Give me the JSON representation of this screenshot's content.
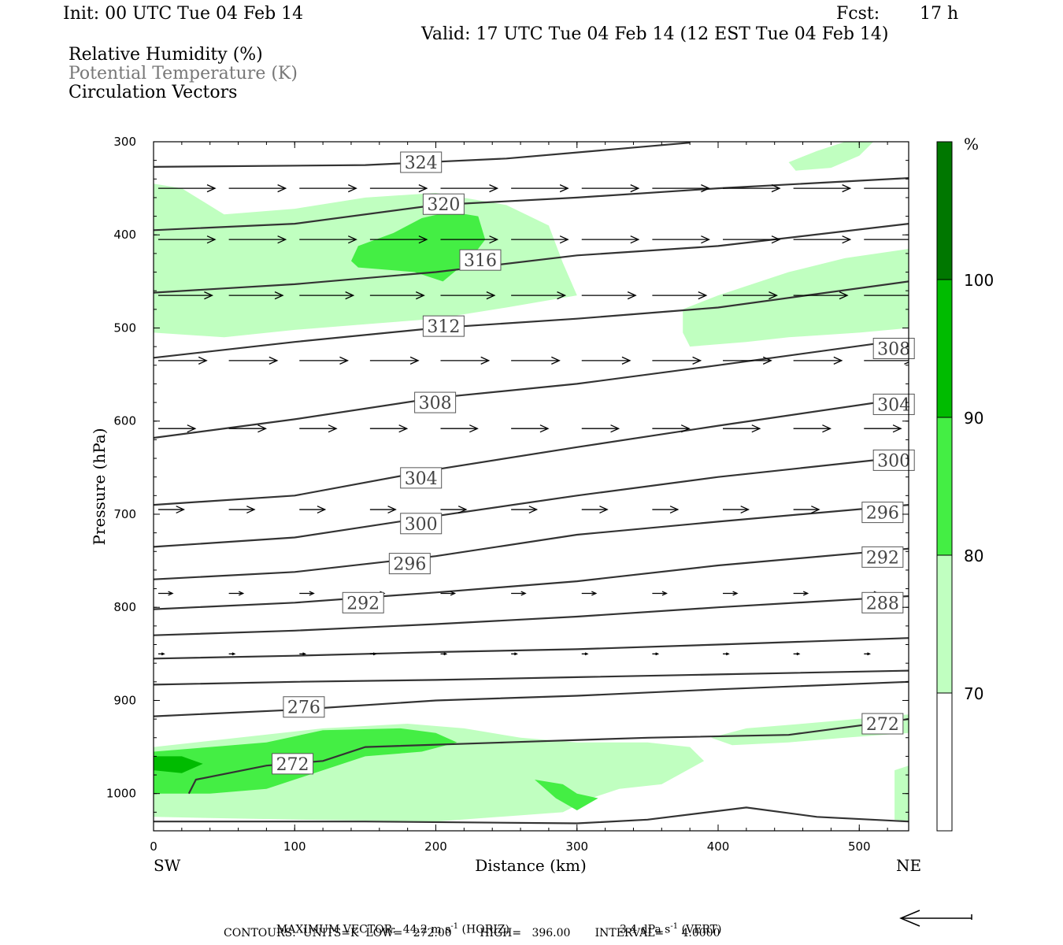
{
  "header": {
    "init": "Init: 00 UTC Tue 04 Feb 14",
    "fcst_label": "Fcst:",
    "fcst_value": "17 h",
    "valid": "Valid: 17 UTC Tue 04 Feb 14 (12 EST Tue 04 Feb 14)"
  },
  "fields": [
    {
      "label": "Relative Humidity (%)",
      "color": "#000000"
    },
    {
      "label": "Potential Temperature (K)",
      "color": "#777777"
    },
    {
      "label": "Circulation Vectors",
      "color": "#000000"
    }
  ],
  "colorbar": {
    "unit": "%",
    "levels": [
      "70",
      "80",
      "90",
      "100"
    ],
    "colors": [
      "#ffffff",
      "#c0ffc0",
      "#44ee44",
      "#00bb00",
      "#007700"
    ]
  },
  "footer": {
    "max_vector_label": "MAXIMUM VECTOR:",
    "horiz_value": "44.2 m s",
    "horiz_exp": "-1",
    "horiz_tag": "(HORIZ)",
    "vert_value": "3.4 dPa s",
    "vert_exp": "-1",
    "vert_tag": "(VERT)",
    "contours": "CONTOURS:  UNITS=K  LOW=   272.00        HIGH=   396.00       INTERVAL=     4.0000"
  },
  "chart_data": {
    "type": "cross-section",
    "xlabel": "Distance (km)",
    "ylabel": "Pressure (hPa)",
    "x_left_label": "SW",
    "x_right_label": "NE",
    "xlim": [
      0,
      535
    ],
    "ylim": [
      1040,
      300
    ],
    "xticks": [
      0,
      100,
      200,
      300,
      400,
      500
    ],
    "yticks": [
      300,
      400,
      500,
      600,
      700,
      800,
      900,
      1000
    ],
    "theta_contours": [
      {
        "level": 324,
        "points": [
          [
            0,
            327
          ],
          [
            150,
            325
          ],
          [
            250,
            318
          ],
          [
            380,
            301
          ]
        ]
      },
      {
        "level": 320,
        "points": [
          [
            0,
            395
          ],
          [
            100,
            388
          ],
          [
            200,
            368
          ],
          [
            300,
            360
          ],
          [
            400,
            350
          ],
          [
            535,
            339
          ]
        ]
      },
      {
        "level": 316,
        "points": [
          [
            0,
            462
          ],
          [
            100,
            453
          ],
          [
            200,
            440
          ],
          [
            300,
            422
          ],
          [
            400,
            412
          ],
          [
            535,
            388
          ]
        ]
      },
      {
        "level": 312,
        "points": [
          [
            0,
            532
          ],
          [
            100,
            515
          ],
          [
            200,
            500
          ],
          [
            300,
            490
          ],
          [
            400,
            478
          ],
          [
            535,
            450
          ]
        ]
      },
      {
        "level": 308,
        "points": [
          [
            0,
            618
          ],
          [
            100,
            598
          ],
          [
            200,
            575
          ],
          [
            300,
            560
          ],
          [
            400,
            540
          ],
          [
            535,
            512
          ]
        ]
      },
      {
        "level": 304,
        "points": [
          [
            0,
            690
          ],
          [
            100,
            680
          ],
          [
            200,
            652
          ],
          [
            300,
            628
          ],
          [
            400,
            605
          ],
          [
            535,
            575
          ]
        ]
      },
      {
        "level": 300,
        "points": [
          [
            0,
            735
          ],
          [
            100,
            725
          ],
          [
            200,
            702
          ],
          [
            300,
            680
          ],
          [
            400,
            660
          ],
          [
            535,
            638
          ]
        ]
      },
      {
        "level": 296,
        "points": [
          [
            0,
            770
          ],
          [
            100,
            762
          ],
          [
            200,
            745
          ],
          [
            300,
            722
          ],
          [
            400,
            708
          ],
          [
            535,
            690
          ]
        ]
      },
      {
        "level": 292,
        "points": [
          [
            0,
            802
          ],
          [
            100,
            795
          ],
          [
            200,
            784
          ],
          [
            300,
            772
          ],
          [
            400,
            755
          ],
          [
            535,
            737
          ]
        ]
      },
      {
        "level": 288,
        "points": [
          [
            0,
            830
          ],
          [
            100,
            825
          ],
          [
            200,
            818
          ],
          [
            300,
            810
          ],
          [
            400,
            800
          ],
          [
            535,
            788
          ]
        ]
      },
      {
        "level": 284,
        "points": [
          [
            0,
            855
          ],
          [
            100,
            852
          ],
          [
            200,
            848
          ],
          [
            300,
            845
          ],
          [
            400,
            840
          ],
          [
            535,
            833
          ]
        ]
      },
      {
        "level": 280,
        "points": [
          [
            0,
            883
          ],
          [
            100,
            880
          ],
          [
            200,
            878
          ],
          [
            300,
            875
          ],
          [
            400,
            872
          ],
          [
            535,
            868
          ]
        ]
      },
      {
        "level": 276,
        "points": [
          [
            0,
            917
          ],
          [
            100,
            910
          ],
          [
            200,
            900
          ],
          [
            300,
            895
          ],
          [
            400,
            888
          ],
          [
            535,
            880
          ]
        ]
      },
      {
        "level": 272,
        "points": [
          [
            25,
            1000
          ],
          [
            30,
            985
          ],
          [
            80,
            970
          ],
          [
            120,
            965
          ],
          [
            150,
            950
          ],
          [
            250,
            945
          ],
          [
            350,
            940
          ],
          [
            450,
            937
          ],
          [
            535,
            920
          ]
        ]
      },
      {
        "level": 268,
        "points": [
          [
            0,
            1030
          ],
          [
            150,
            1030
          ],
          [
            300,
            1032
          ],
          [
            350,
            1028
          ],
          [
            420,
            1015
          ],
          [
            470,
            1025
          ],
          [
            535,
            1030
          ]
        ]
      }
    ],
    "theta_labels": [
      {
        "level": "324",
        "x": 175,
        "p": 322
      },
      {
        "level": "320",
        "x": 191,
        "p": 367
      },
      {
        "level": "316",
        "x": 217,
        "p": 427
      },
      {
        "level": "312",
        "x": 191,
        "p": 498
      },
      {
        "level": "308",
        "x": 510,
        "p": 522
      },
      {
        "level": "308",
        "x": 185,
        "p": 580
      },
      {
        "level": "304",
        "x": 510,
        "p": 582
      },
      {
        "level": "300",
        "x": 510,
        "p": 642
      },
      {
        "level": "304",
        "x": 175,
        "p": 661
      },
      {
        "level": "296",
        "x": 502,
        "p": 698
      },
      {
        "level": "300",
        "x": 175,
        "p": 710
      },
      {
        "level": "292",
        "x": 502,
        "p": 746
      },
      {
        "level": "296",
        "x": 167,
        "p": 753
      },
      {
        "level": "288",
        "x": 502,
        "p": 795
      },
      {
        "level": "292",
        "x": 134,
        "p": 795
      },
      {
        "level": "276",
        "x": 92,
        "p": 907
      },
      {
        "level": "272",
        "x": 502,
        "p": 925
      },
      {
        "level": "272",
        "x": 84,
        "p": 968
      }
    ],
    "rh_regions": [
      {
        "level": "70-80",
        "points": [
          [
            0,
            345
          ],
          [
            20,
            350
          ],
          [
            50,
            378
          ],
          [
            100,
            372
          ],
          [
            150,
            360
          ],
          [
            200,
            355
          ],
          [
            250,
            368
          ],
          [
            280,
            390
          ],
          [
            290,
            430
          ],
          [
            300,
            465
          ],
          [
            250,
            478
          ],
          [
            200,
            490
          ],
          [
            150,
            496
          ],
          [
            100,
            502
          ],
          [
            50,
            510
          ],
          [
            0,
            505
          ]
        ]
      },
      {
        "level": "80-90",
        "points": [
          [
            145,
            412
          ],
          [
            170,
            398
          ],
          [
            190,
            382
          ],
          [
            210,
            375
          ],
          [
            230,
            380
          ],
          [
            235,
            405
          ],
          [
            225,
            425
          ],
          [
            205,
            450
          ],
          [
            185,
            440
          ],
          [
            145,
            435
          ],
          [
            140,
            428
          ]
        ]
      },
      {
        "level": "70-80",
        "points": [
          [
            375,
            480
          ],
          [
            400,
            465
          ],
          [
            450,
            440
          ],
          [
            490,
            425
          ],
          [
            535,
            415
          ],
          [
            535,
            500
          ],
          [
            500,
            505
          ],
          [
            450,
            510
          ],
          [
            420,
            515
          ],
          [
            380,
            520
          ],
          [
            375,
            505
          ]
        ]
      },
      {
        "level": "70-80",
        "points": [
          [
            450,
            322
          ],
          [
            470,
            310
          ],
          [
            490,
            300
          ],
          [
            510,
            300
          ],
          [
            500,
            315
          ],
          [
            480,
            328
          ],
          [
            455,
            331
          ]
        ]
      },
      {
        "level": "70-80",
        "points": [
          [
            0,
            950
          ],
          [
            60,
            940
          ],
          [
            120,
            930
          ],
          [
            180,
            925
          ],
          [
            220,
            930
          ],
          [
            260,
            940
          ],
          [
            300,
            945
          ],
          [
            350,
            945
          ],
          [
            380,
            950
          ],
          [
            390,
            965
          ],
          [
            360,
            990
          ],
          [
            330,
            995
          ],
          [
            310,
            1005
          ],
          [
            290,
            1020
          ],
          [
            200,
            1030
          ],
          [
            100,
            1028
          ],
          [
            0,
            1025
          ]
        ]
      },
      {
        "level": "70-80",
        "points": [
          [
            525,
            975
          ],
          [
            535,
            970
          ],
          [
            535,
            1030
          ],
          [
            525,
            1028
          ]
        ]
      },
      {
        "level": "80-90",
        "points": [
          [
            0,
            955
          ],
          [
            40,
            950
          ],
          [
            80,
            945
          ],
          [
            120,
            932
          ],
          [
            175,
            930
          ],
          [
            200,
            935
          ],
          [
            215,
            945
          ],
          [
            190,
            955
          ],
          [
            150,
            960
          ],
          [
            120,
            975
          ],
          [
            80,
            995
          ],
          [
            40,
            1000
          ],
          [
            0,
            1000
          ]
        ]
      },
      {
        "level": "80-90",
        "points": [
          [
            270,
            985
          ],
          [
            290,
            990
          ],
          [
            300,
            1000
          ],
          [
            315,
            1005
          ],
          [
            300,
            1018
          ],
          [
            285,
            1005
          ]
        ]
      },
      {
        "level": "90-100",
        "points": [
          [
            0,
            960
          ],
          [
            20,
            960
          ],
          [
            35,
            968
          ],
          [
            20,
            978
          ],
          [
            0,
            975
          ]
        ]
      },
      {
        "level": "70-80",
        "points": [
          [
            395,
            940
          ],
          [
            420,
            930
          ],
          [
            460,
            925
          ],
          [
            535,
            915
          ],
          [
            535,
            935
          ],
          [
            490,
            940
          ],
          [
            450,
            945
          ],
          [
            410,
            948
          ]
        ]
      }
    ],
    "vector_rows": [
      {
        "p": 350,
        "dx": 40,
        "dp": 0
      },
      {
        "p": 405,
        "dx": 40,
        "dp": 0
      },
      {
        "p": 465,
        "dx": 38,
        "dp": 0
      },
      {
        "p": 535,
        "dx": 34,
        "dp": 0
      },
      {
        "p": 608,
        "dx": 26,
        "dp": 0
      },
      {
        "p": 695,
        "dx": 18,
        "dp": 0
      },
      {
        "p": 785,
        "dx": 10,
        "dp": 0
      },
      {
        "p": 850,
        "dx": 4,
        "dp": 0
      }
    ],
    "vector_x": [
      0,
      50,
      100,
      150,
      200,
      250,
      300,
      350,
      400,
      450,
      500
    ]
  }
}
